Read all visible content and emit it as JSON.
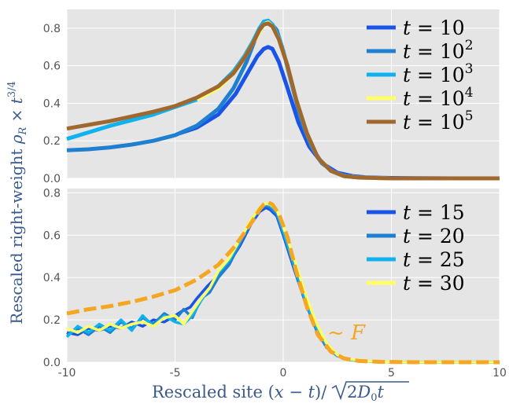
{
  "xlabel": "Rescaled site (x − t)/√(2D₀t)",
  "ylabel": "Rescaled right-weight ρ_R × t^{3/4}",
  "annotation": "~ F",
  "chart_data": [
    {
      "type": "line",
      "panel": "top",
      "xlim": [
        -10,
        10
      ],
      "ylim": [
        0,
        0.9
      ],
      "xticks": [
        -10,
        -5,
        0,
        5,
        10
      ],
      "yticks": [
        0.0,
        0.2,
        0.4,
        0.6,
        0.8
      ],
      "ytick_labels": [
        "0.0",
        "0.2",
        "0.4",
        "0.6",
        "0.8"
      ],
      "grid": true,
      "legend_position": "top-right",
      "series": [
        {
          "name": "t = 10",
          "legend_var": "t",
          "legend_base": "10",
          "legend_exp": "",
          "color": "#1a53e8",
          "x": [
            -4.8,
            -4,
            -3,
            -2.2,
            -1.6,
            -1.2,
            -0.9,
            -0.7,
            -0.5,
            -0.2,
            0.2,
            0.7,
            1.2,
            1.8,
            2.5,
            3.2,
            3.8,
            4.5,
            5,
            6,
            8,
            10
          ],
          "y": [
            0.24,
            0.27,
            0.34,
            0.45,
            0.57,
            0.65,
            0.69,
            0.7,
            0.69,
            0.62,
            0.48,
            0.3,
            0.17,
            0.08,
            0.03,
            0.012,
            0.006,
            0.003,
            0.002,
            0.001,
            0.0,
            0.0
          ]
        },
        {
          "name": "t = 10^2",
          "legend_var": "t",
          "legend_base": "10",
          "legend_exp": "2",
          "color": "#1f7fd0",
          "x": [
            -10,
            -9,
            -8,
            -7,
            -6,
            -5,
            -4,
            -3,
            -2.3,
            -1.7,
            -1.3,
            -1,
            -0.8,
            -0.6,
            -0.3,
            0,
            0.4,
            0.8,
            1.3,
            1.8,
            2.3,
            2.8,
            3.5,
            4,
            5,
            10
          ],
          "y": [
            0.15,
            0.155,
            0.165,
            0.18,
            0.2,
            0.23,
            0.28,
            0.37,
            0.48,
            0.62,
            0.74,
            0.81,
            0.835,
            0.83,
            0.79,
            0.68,
            0.5,
            0.32,
            0.17,
            0.08,
            0.035,
            0.015,
            0.006,
            0.003,
            0.0,
            0.0
          ]
        },
        {
          "name": "t = 10^3",
          "legend_var": "t",
          "legend_base": "10",
          "legend_exp": "3",
          "color": "#0fb1ef",
          "x": [
            -10,
            -9,
            -8,
            -7,
            -6,
            -5,
            -4,
            -3,
            -2.3,
            -1.8,
            -1.4,
            -1.1,
            -0.9,
            -0.7,
            -0.5,
            -0.2,
            0.2,
            0.6,
            1.1,
            1.6,
            2.2,
            2.8,
            3.5,
            5,
            10
          ],
          "y": [
            0.21,
            0.245,
            0.28,
            0.31,
            0.34,
            0.38,
            0.42,
            0.49,
            0.57,
            0.65,
            0.73,
            0.8,
            0.835,
            0.84,
            0.82,
            0.75,
            0.6,
            0.42,
            0.24,
            0.11,
            0.04,
            0.012,
            0.004,
            0.0,
            0.0
          ]
        },
        {
          "name": "t = 10^4",
          "legend_var": "t",
          "legend_base": "10",
          "legend_exp": "4",
          "color": "#ffff66",
          "x": [
            -4,
            -3,
            -2.3,
            -1.8,
            -1.4,
            -1.1,
            -0.9,
            -0.7,
            -0.5,
            -0.2,
            0.2,
            0.6,
            1.1,
            1.6,
            2.2,
            2.8,
            3.5,
            5,
            10
          ],
          "y": [
            0.42,
            0.48,
            0.56,
            0.64,
            0.72,
            0.78,
            0.82,
            0.83,
            0.81,
            0.74,
            0.6,
            0.42,
            0.24,
            0.11,
            0.04,
            0.012,
            0.004,
            0.0,
            0.0
          ]
        },
        {
          "name": "t = 10^5",
          "legend_var": "t",
          "legend_base": "10",
          "legend_exp": "5",
          "color": "#a0672e",
          "x": [
            -10,
            -9,
            -8,
            -7,
            -6,
            -5,
            -4,
            -3,
            -2.3,
            -1.8,
            -1.4,
            -1.1,
            -0.9,
            -0.7,
            -0.5,
            -0.2,
            0.2,
            0.6,
            1.1,
            1.6,
            2.2,
            2.8,
            3.5,
            5,
            10
          ],
          "y": [
            0.265,
            0.285,
            0.305,
            0.33,
            0.355,
            0.385,
            0.43,
            0.49,
            0.56,
            0.64,
            0.72,
            0.79,
            0.82,
            0.825,
            0.81,
            0.74,
            0.6,
            0.42,
            0.24,
            0.11,
            0.04,
            0.012,
            0.004,
            0.0,
            0.0
          ]
        }
      ]
    },
    {
      "type": "line",
      "panel": "bottom",
      "xlim": [
        -10,
        10
      ],
      "ylim": [
        0,
        0.82
      ],
      "xticks": [
        -10,
        -5,
        0,
        5,
        10
      ],
      "yticks": [
        0.0,
        0.2,
        0.4,
        0.6,
        0.8
      ],
      "ytick_labels": [
        "0.0",
        "0.2",
        "0.4",
        "0.6",
        "0.8"
      ],
      "grid": true,
      "legend_position": "top-right",
      "series": [
        {
          "name": "t = 15",
          "legend_var": "t",
          "legend_base": "15",
          "color": "#1a53e8",
          "x": [
            -10,
            -9.5,
            -9,
            -8.5,
            -8,
            -7.5,
            -7,
            -6.5,
            -6,
            -5.5,
            -5,
            -4.7,
            -4.3,
            -4,
            -3.5,
            -3,
            -2.5,
            -2,
            -1.5,
            -1.1,
            -0.8,
            -0.6,
            -0.3,
            0,
            0.5,
            1,
            1.5,
            2,
            2.5,
            3,
            4,
            5,
            10
          ],
          "y": [
            0.14,
            0.13,
            0.16,
            0.15,
            0.17,
            0.16,
            0.19,
            0.17,
            0.2,
            0.19,
            0.22,
            0.24,
            0.26,
            0.3,
            0.36,
            0.41,
            0.47,
            0.55,
            0.65,
            0.71,
            0.73,
            0.72,
            0.69,
            0.6,
            0.44,
            0.29,
            0.16,
            0.07,
            0.03,
            0.012,
            0.004,
            0.0,
            0.0
          ]
        },
        {
          "name": "t = 20",
          "legend_var": "t",
          "legend_base": "20",
          "color": "#1f7fd0",
          "x": [
            -10,
            -9.5,
            -9,
            -8.5,
            -8,
            -7.5,
            -7,
            -6.5,
            -6,
            -5.5,
            -5,
            -4.6,
            -4.2,
            -3.8,
            -3.4,
            -3,
            -2.5,
            -2,
            -1.5,
            -1.1,
            -0.8,
            -0.6,
            -0.3,
            0,
            0.5,
            1,
            1.5,
            2,
            2.5,
            3,
            4,
            5,
            10
          ],
          "y": [
            0.13,
            0.16,
            0.13,
            0.17,
            0.14,
            0.19,
            0.16,
            0.21,
            0.18,
            0.23,
            0.2,
            0.25,
            0.21,
            0.3,
            0.33,
            0.4,
            0.46,
            0.56,
            0.66,
            0.72,
            0.74,
            0.73,
            0.7,
            0.61,
            0.45,
            0.29,
            0.16,
            0.07,
            0.03,
            0.012,
            0.004,
            0.0,
            0.0
          ]
        },
        {
          "name": "t = 25",
          "legend_var": "t",
          "legend_base": "25",
          "color": "#0fb1ef",
          "x": [
            -10,
            -9.5,
            -9,
            -8.5,
            -8,
            -7.5,
            -7,
            -6.5,
            -6,
            -5.5,
            -5,
            -4.6,
            -4.2,
            -3.8,
            -3.4,
            -3,
            -2.5,
            -2,
            -1.5,
            -1.1,
            -0.8,
            -0.6,
            -0.3,
            0,
            0.5,
            1,
            1.5,
            2,
            2.5,
            3,
            4,
            5,
            10
          ],
          "y": [
            0.12,
            0.17,
            0.14,
            0.18,
            0.15,
            0.2,
            0.15,
            0.22,
            0.17,
            0.22,
            0.19,
            0.18,
            0.22,
            0.29,
            0.35,
            0.42,
            0.48,
            0.57,
            0.67,
            0.73,
            0.745,
            0.74,
            0.71,
            0.62,
            0.46,
            0.3,
            0.17,
            0.08,
            0.03,
            0.012,
            0.004,
            0.0,
            0.0
          ]
        },
        {
          "name": "t = 30",
          "legend_var": "t",
          "legend_base": "30",
          "color": "#ffff66",
          "x": [
            -10,
            -9.5,
            -9,
            -8.5,
            -8,
            -7.5,
            -7,
            -6.5,
            -6,
            -5.5,
            -5,
            -4.6,
            -4.2,
            -3.8,
            -3.4,
            -3,
            -2.5,
            -2,
            -1.5,
            -1.1,
            -0.8,
            -0.6,
            -0.3,
            0,
            0.5,
            1,
            1.5,
            2,
            2.5,
            3,
            4,
            5,
            10
          ],
          "y": [
            0.16,
            0.14,
            0.17,
            0.15,
            0.18,
            0.16,
            0.18,
            0.19,
            0.17,
            0.21,
            0.22,
            0.18,
            0.24,
            0.3,
            0.35,
            0.43,
            0.49,
            0.58,
            0.67,
            0.73,
            0.75,
            0.745,
            0.72,
            0.64,
            0.49,
            0.33,
            0.19,
            0.09,
            0.035,
            0.015,
            0.005,
            0.0,
            0.0
          ]
        },
        {
          "name": "~ F",
          "legend_var": "",
          "legend_base": "",
          "color": "#f5a623",
          "dashed": true,
          "x": [
            -10,
            -9,
            -8,
            -7,
            -6,
            -5,
            -4,
            -3,
            -2.3,
            -1.8,
            -1.4,
            -1.1,
            -0.9,
            -0.7,
            -0.5,
            -0.2,
            0.2,
            0.6,
            1.1,
            1.6,
            2.2,
            2.8,
            3.5,
            4.5,
            6,
            10
          ],
          "y": [
            0.23,
            0.25,
            0.265,
            0.285,
            0.31,
            0.34,
            0.39,
            0.46,
            0.54,
            0.61,
            0.67,
            0.72,
            0.745,
            0.755,
            0.745,
            0.7,
            0.59,
            0.43,
            0.26,
            0.13,
            0.05,
            0.018,
            0.006,
            0.002,
            0.0,
            0.0
          ]
        }
      ]
    }
  ]
}
